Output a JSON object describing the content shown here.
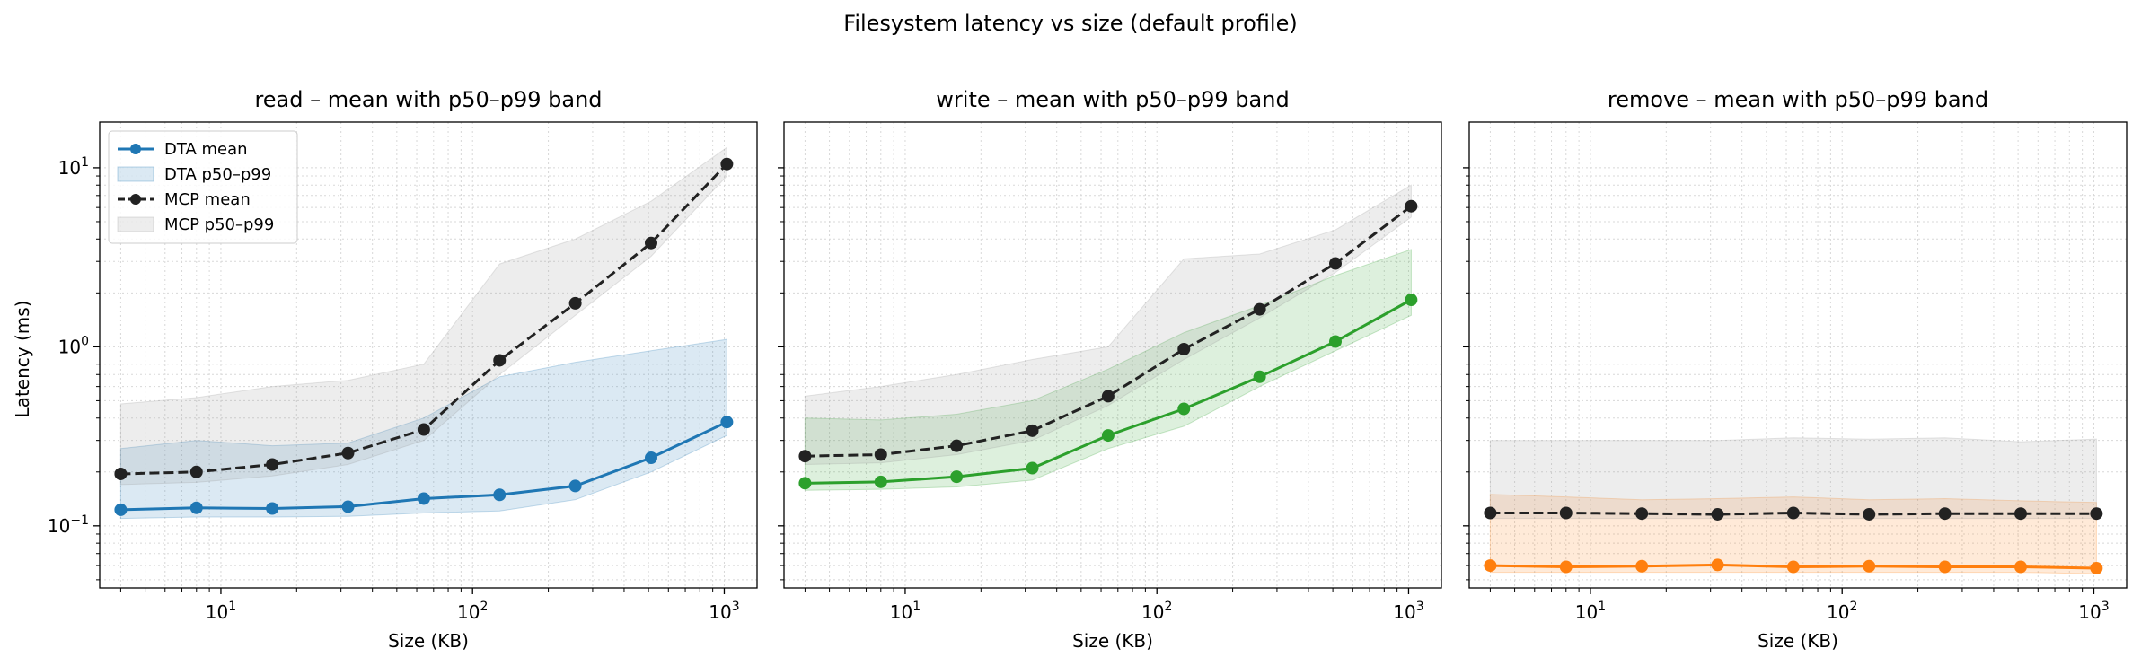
{
  "suptitle": "Filesystem latency vs size (default profile)",
  "ylabel": "Latency (ms)",
  "chart_data": [
    {
      "type": "line",
      "title": "read – mean with p50–p99 band",
      "xlabel": "Size (KB)",
      "xscale": "log",
      "yscale": "log",
      "xlim": [
        3.3,
        1350
      ],
      "ylim": [
        0.045,
        18
      ],
      "grid": "on (major and minor, dotted)",
      "legend": "upper-left",
      "x": [
        4,
        8,
        16,
        32,
        64,
        128,
        256,
        512,
        1024
      ],
      "series": [
        {
          "name": "DTA mean",
          "kind": "line",
          "color": "#1f77b4",
          "style": "solid",
          "values": [
            0.123,
            0.126,
            0.125,
            0.128,
            0.142,
            0.149,
            0.167,
            0.24,
            0.38
          ]
        },
        {
          "name": "DTA p50–p99",
          "kind": "band",
          "color": "#1f77b4",
          "low": [
            0.11,
            0.112,
            0.112,
            0.113,
            0.118,
            0.121,
            0.14,
            0.2,
            0.32
          ],
          "high": [
            0.27,
            0.3,
            0.28,
            0.29,
            0.4,
            0.68,
            0.82,
            0.95,
            1.1
          ]
        },
        {
          "name": "MCP mean",
          "kind": "line",
          "color": "#222222",
          "style": "dashed",
          "values": [
            0.195,
            0.2,
            0.22,
            0.255,
            0.345,
            0.84,
            1.75,
            3.8,
            10.5
          ]
        },
        {
          "name": "MCP p50–p99",
          "kind": "band",
          "color": "#999999",
          "low": [
            0.17,
            0.175,
            0.19,
            0.22,
            0.3,
            0.7,
            1.5,
            3.2,
            9.0
          ],
          "high": [
            0.48,
            0.52,
            0.6,
            0.65,
            0.8,
            2.9,
            4.0,
            6.5,
            13.0
          ]
        }
      ]
    },
    {
      "type": "line",
      "title": "write – mean with p50–p99 band",
      "xlabel": "Size (KB)",
      "xscale": "log",
      "yscale": "log",
      "xlim": [
        3.3,
        1350
      ],
      "ylim": [
        0.045,
        18
      ],
      "grid": "on (major and minor, dotted)",
      "x": [
        4,
        8,
        16,
        32,
        64,
        128,
        256,
        512,
        1024
      ],
      "series": [
        {
          "kind": "line",
          "color": "#2ca02c",
          "style": "solid",
          "values": [
            0.173,
            0.176,
            0.188,
            0.21,
            0.32,
            0.45,
            0.68,
            1.07,
            1.83
          ]
        },
        {
          "kind": "band",
          "color": "#2ca02c",
          "low": [
            0.158,
            0.16,
            0.165,
            0.18,
            0.27,
            0.36,
            0.6,
            0.95,
            1.5
          ],
          "high": [
            0.4,
            0.39,
            0.42,
            0.5,
            0.75,
            1.2,
            1.7,
            2.5,
            3.5
          ]
        },
        {
          "kind": "line",
          "color": "#222222",
          "style": "dashed",
          "values": [
            0.245,
            0.25,
            0.28,
            0.34,
            0.53,
            0.97,
            1.62,
            2.92,
            6.1
          ]
        },
        {
          "kind": "band",
          "color": "#999999",
          "low": [
            0.22,
            0.225,
            0.25,
            0.3,
            0.47,
            0.85,
            1.45,
            2.6,
            5.3
          ],
          "high": [
            0.53,
            0.6,
            0.7,
            0.85,
            1.0,
            3.1,
            3.3,
            4.5,
            8.0
          ]
        }
      ]
    },
    {
      "type": "line",
      "title": "remove – mean with p50–p99 band",
      "xlabel": "Size (KB)",
      "xscale": "log",
      "yscale": "log",
      "xlim": [
        3.3,
        1350
      ],
      "ylim": [
        0.045,
        18
      ],
      "grid": "on (major and minor, dotted)",
      "x": [
        4,
        8,
        16,
        32,
        64,
        128,
        256,
        512,
        1024
      ],
      "series": [
        {
          "kind": "line",
          "color": "#ff7f0e",
          "style": "solid",
          "values": [
            0.06,
            0.059,
            0.0595,
            0.0605,
            0.059,
            0.0595,
            0.059,
            0.059,
            0.058
          ]
        },
        {
          "kind": "band",
          "color": "#ff7f0e",
          "low": [
            0.055,
            0.055,
            0.055,
            0.055,
            0.055,
            0.055,
            0.055,
            0.055,
            0.054
          ],
          "high": [
            0.15,
            0.145,
            0.14,
            0.142,
            0.145,
            0.14,
            0.142,
            0.138,
            0.135
          ]
        },
        {
          "kind": "line",
          "color": "#222222",
          "style": "dashed",
          "values": [
            0.118,
            0.118,
            0.117,
            0.116,
            0.118,
            0.116,
            0.117,
            0.117,
            0.117
          ]
        },
        {
          "kind": "band",
          "color": "#999999",
          "low": [
            0.11,
            0.11,
            0.11,
            0.11,
            0.11,
            0.11,
            0.11,
            0.11,
            0.11
          ],
          "high": [
            0.3,
            0.3,
            0.3,
            0.3,
            0.31,
            0.305,
            0.31,
            0.295,
            0.305
          ]
        }
      ]
    }
  ]
}
